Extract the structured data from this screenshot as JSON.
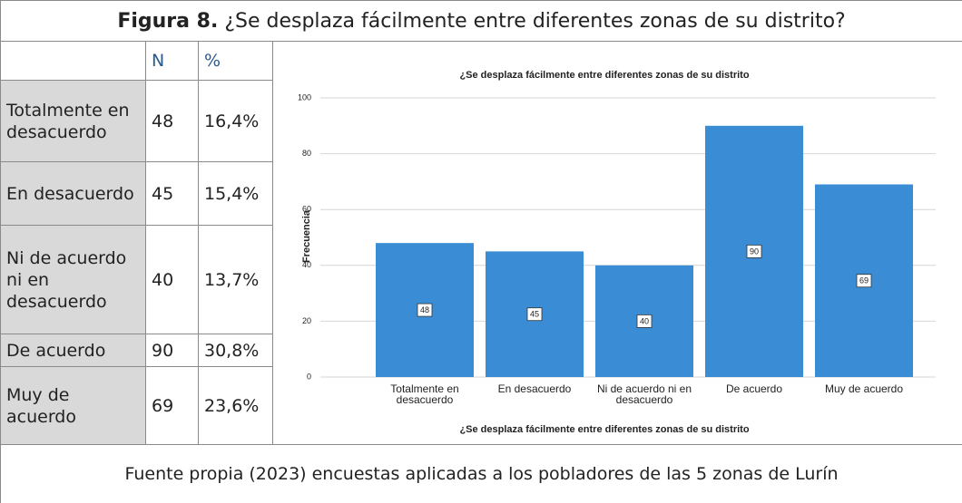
{
  "header": {
    "label": "Figura 8.",
    "title": "¿Se desplaza fácilmente entre diferentes zonas de su distrito?"
  },
  "table": {
    "columns": [
      "N",
      "%"
    ],
    "rows": [
      [
        "Totalmente en desacuerdo",
        "48",
        "16,4%"
      ],
      [
        "En desacuerdo",
        "45",
        "15,4%"
      ],
      [
        "Ni de acuerdo ni en desacuerdo",
        "40",
        "13,7%"
      ],
      [
        "De acuerdo",
        "90",
        "30,8%"
      ],
      [
        "Muy de acuerdo",
        "69",
        "23,6%"
      ]
    ]
  },
  "chart_data": {
    "type": "bar",
    "title": "¿Se desplaza fácilmente entre diferentes zonas de su distrito",
    "x_label": "¿Se desplaza fácilmente entre diferentes zonas de su distrito",
    "y_label": "Frecuencia",
    "categories": [
      "Totalmente en desacuerdo",
      "En desacuerdo",
      "Ni de acuerdo ni en desacuerdo",
      "De acuerdo",
      "Muy de acuerdo"
    ],
    "values": [
      48,
      45,
      40,
      90,
      69
    ],
    "color": "#3a8dd4",
    "ylim": [
      0,
      100
    ],
    "yticks": [
      0,
      20,
      40,
      60,
      80,
      100
    ],
    "grid": true
  },
  "footer": "Fuente propia (2023)   encuestas aplicadas a los pobladores de las 5 zonas de Lurín"
}
